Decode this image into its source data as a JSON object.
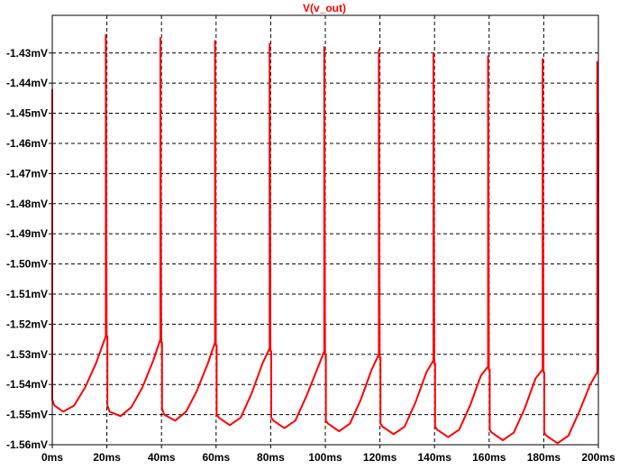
{
  "chart_data": {
    "type": "line",
    "title": "",
    "xlabel": "",
    "ylabel": "",
    "grid": true,
    "legend": "top-center",
    "xlim": [
      0,
      200
    ],
    "ylim": [
      -1.56,
      -1.4175
    ],
    "x_ticks": [
      0,
      20,
      40,
      60,
      80,
      100,
      120,
      140,
      160,
      180,
      200
    ],
    "x_tick_labels": [
      "0ms",
      "20ms",
      "40ms",
      "60ms",
      "80ms",
      "100ms",
      "120ms",
      "140ms",
      "160ms",
      "180ms",
      "200ms"
    ],
    "y_ticks": [
      -1.43,
      -1.44,
      -1.45,
      -1.46,
      -1.47,
      -1.48,
      -1.49,
      -1.5,
      -1.51,
      -1.52,
      -1.53,
      -1.54,
      -1.55,
      -1.56
    ],
    "y_tick_labels": [
      "-1.43mV",
      "-1.44mV",
      "-1.45mV",
      "-1.46mV",
      "-1.47mV",
      "-1.48mV",
      "-1.49mV",
      "-1.50mV",
      "-1.51mV",
      "-1.52mV",
      "-1.53mV",
      "-1.54mV",
      "-1.55mV",
      "-1.56mV"
    ],
    "series": [
      {
        "name": "V(v_out)",
        "color": "#ff0000",
        "x": [
          0,
          0,
          0.8,
          4,
          8,
          12,
          16,
          19.6,
          19.6,
          19.9,
          20.2,
          20.2,
          21,
          25,
          29,
          33,
          37,
          39.6,
          39.6,
          39.9,
          40.2,
          40.2,
          41,
          45,
          49,
          53,
          57,
          59.6,
          59.6,
          59.9,
          60.2,
          60.2,
          61,
          65,
          69,
          73,
          77,
          79.6,
          79.6,
          79.9,
          80.2,
          80.2,
          81,
          85,
          89,
          93,
          97,
          99.6,
          99.6,
          99.9,
          100.2,
          100.2,
          101,
          105,
          109,
          113,
          117,
          119.6,
          119.6,
          119.9,
          120.2,
          120.2,
          121,
          125,
          129,
          133,
          137,
          139.6,
          139.6,
          139.9,
          140.2,
          140.2,
          141,
          145,
          149,
          153,
          157,
          159.6,
          159.6,
          159.9,
          160.2,
          160.2,
          161,
          165,
          169,
          173,
          177,
          179.6,
          179.6,
          179.9,
          180.2,
          180.2,
          181,
          185,
          189,
          193,
          197,
          199.6,
          199.6,
          199.9,
          200
        ],
        "y": [
          -1.442,
          -1.545,
          -1.547,
          -1.549,
          -1.547,
          -1.541,
          -1.533,
          -1.524,
          -1.424,
          -1.524,
          -1.524,
          -1.547,
          -1.549,
          -1.5505,
          -1.5475,
          -1.541,
          -1.532,
          -1.525,
          -1.425,
          -1.526,
          -1.526,
          -1.548,
          -1.55,
          -1.552,
          -1.549,
          -1.542,
          -1.533,
          -1.526,
          -1.426,
          -1.527,
          -1.527,
          -1.55,
          -1.551,
          -1.5535,
          -1.551,
          -1.543,
          -1.533,
          -1.528,
          -1.427,
          -1.529,
          -1.529,
          -1.551,
          -1.552,
          -1.5545,
          -1.552,
          -1.544,
          -1.535,
          -1.529,
          -1.428,
          -1.53,
          -1.53,
          -1.552,
          -1.553,
          -1.5555,
          -1.553,
          -1.545,
          -1.535,
          -1.53,
          -1.429,
          -1.531,
          -1.531,
          -1.553,
          -1.554,
          -1.5565,
          -1.554,
          -1.546,
          -1.536,
          -1.532,
          -1.43,
          -1.533,
          -1.533,
          -1.554,
          -1.555,
          -1.5575,
          -1.555,
          -1.547,
          -1.537,
          -1.534,
          -1.431,
          -1.535,
          -1.535,
          -1.555,
          -1.556,
          -1.5585,
          -1.556,
          -1.548,
          -1.538,
          -1.535,
          -1.432,
          -1.536,
          -1.536,
          -1.556,
          -1.557,
          -1.5595,
          -1.557,
          -1.549,
          -1.54,
          -1.536,
          -1.433,
          -1.535,
          -1.45
        ]
      }
    ]
  }
}
